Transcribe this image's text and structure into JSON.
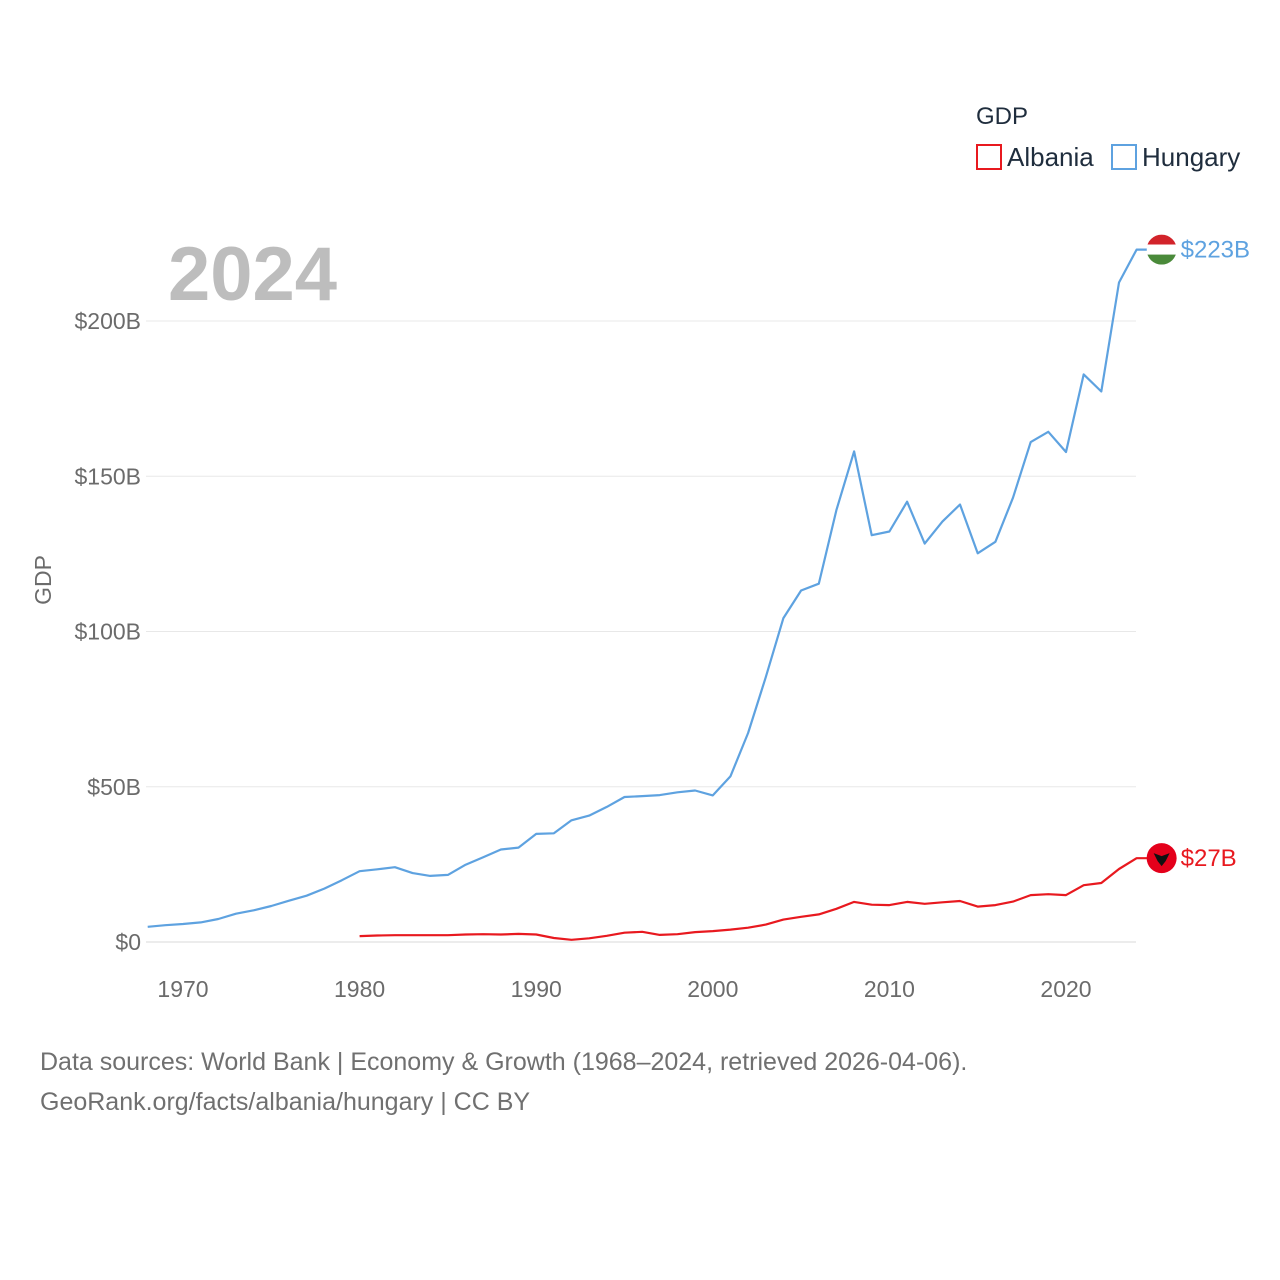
{
  "chart_data": {
    "type": "line",
    "title": "",
    "ylabel": "GDP",
    "xlabel": "",
    "big_year": "2024",
    "xlim": [
      1968,
      2024
    ],
    "ylim": [
      0,
      225
    ],
    "x_ticks": [
      1970,
      1980,
      1990,
      2000,
      2010,
      2020
    ],
    "x_tick_labels": [
      "1970",
      "1980",
      "1990",
      "2000",
      "2010",
      "2020"
    ],
    "y_ticks": [
      0,
      50,
      100,
      150,
      200
    ],
    "y_tick_labels": [
      "$0",
      "$50B",
      "$100B",
      "$150B",
      "$200B"
    ],
    "grid": true,
    "legend": {
      "title": "GDP",
      "position": "top-right"
    },
    "series": [
      {
        "name": "Albania",
        "color": "#e8191f",
        "end_label": "$27B",
        "flag_icon": "albania-flag-icon",
        "x": [
          1980,
          1981,
          1982,
          1983,
          1984,
          1985,
          1986,
          1987,
          1988,
          1989,
          1990,
          1991,
          1992,
          1993,
          1994,
          1995,
          1996,
          1997,
          1998,
          1999,
          2000,
          2001,
          2002,
          2003,
          2004,
          2005,
          2006,
          2007,
          2008,
          2009,
          2010,
          2011,
          2012,
          2013,
          2014,
          2015,
          2016,
          2017,
          2018,
          2019,
          2020,
          2021,
          2022,
          2023,
          2024
        ],
        "values": [
          1.9,
          2.1,
          2.2,
          2.2,
          2.2,
          2.2,
          2.4,
          2.5,
          2.4,
          2.6,
          2.4,
          1.3,
          0.7,
          1.2,
          2.0,
          3.0,
          3.3,
          2.3,
          2.5,
          3.2,
          3.5,
          4.0,
          4.6,
          5.6,
          7.2,
          8.1,
          8.9,
          10.7,
          12.9,
          12.0,
          11.9,
          12.9,
          12.3,
          12.8,
          13.2,
          11.4,
          11.9,
          13.0,
          15.1,
          15.4,
          15.1,
          18.3,
          19.0,
          23.5,
          27.0
        ]
      },
      {
        "name": "Hungary",
        "color": "#5ea2e0",
        "end_label": "$223B",
        "flag_icon": "hungary-flag-icon",
        "x": [
          1968,
          1969,
          1970,
          1971,
          1972,
          1973,
          1974,
          1975,
          1976,
          1977,
          1978,
          1979,
          1980,
          1981,
          1982,
          1983,
          1984,
          1985,
          1986,
          1987,
          1988,
          1989,
          1990,
          1991,
          1992,
          1993,
          1994,
          1995,
          1996,
          1997,
          1998,
          1999,
          2000,
          2001,
          2002,
          2003,
          2004,
          2005,
          2006,
          2007,
          2008,
          2009,
          2010,
          2011,
          2012,
          2013,
          2014,
          2015,
          2016,
          2017,
          2018,
          2019,
          2020,
          2021,
          2022,
          2023,
          2024
        ],
        "values": [
          4.9,
          5.4,
          5.8,
          6.3,
          7.4,
          9.1,
          10.2,
          11.6,
          13.3,
          14.9,
          17.2,
          19.9,
          22.8,
          23.4,
          24.1,
          22.2,
          21.3,
          21.6,
          24.9,
          27.3,
          29.8,
          30.4,
          34.8,
          35.0,
          39.2,
          40.7,
          43.5,
          46.7,
          47.0,
          47.3,
          48.2,
          48.8,
          47.2,
          53.4,
          67.3,
          85.3,
          104.3,
          113.2,
          115.4,
          139.1,
          158.0,
          131.0,
          132.2,
          141.8,
          128.3,
          135.4,
          140.9,
          125.2,
          128.9,
          143.1,
          161.0,
          164.3,
          157.8,
          182.8,
          177.3,
          212.4,
          223.0
        ]
      }
    ]
  },
  "footer": {
    "line1": "Data sources: World Bank | Economy & Growth (1968–2024, retrieved 2026-04-06).",
    "line2": "GeoRank.org/facts/albania/hungary | CC BY"
  }
}
